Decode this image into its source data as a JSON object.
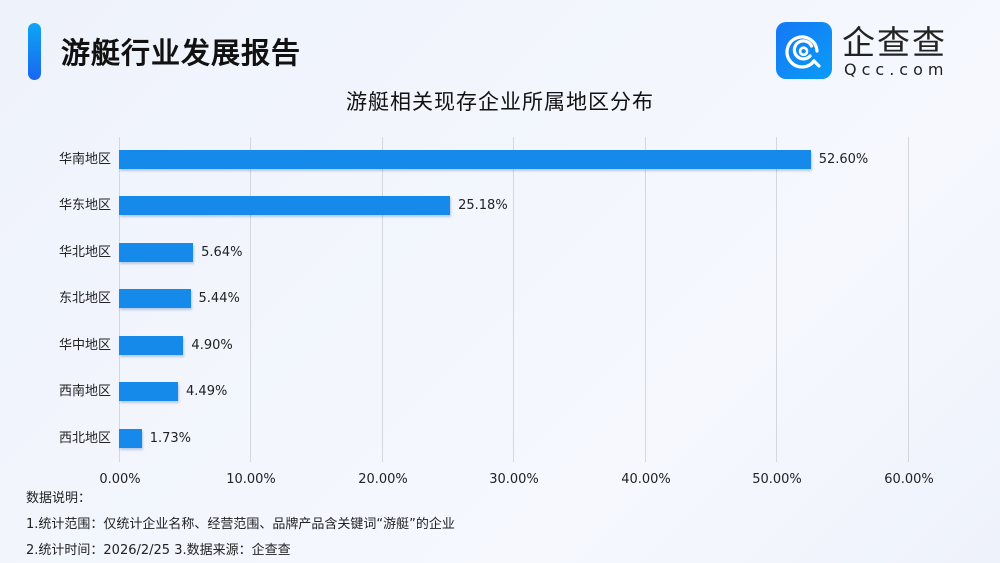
{
  "header": {
    "report_title": "游艇行业发展报告",
    "logo": {
      "cn": "企查查",
      "en": "Qcc.com",
      "icon": "qcc-logo-icon"
    }
  },
  "colors": {
    "bar": "#168aea",
    "accent_top": "#0ea5f5",
    "accent_bottom": "#1a66f0"
  },
  "chart_data": {
    "type": "bar",
    "orientation": "horizontal",
    "title": "游艇相关现存企业所属地区分布",
    "categories": [
      "华南地区",
      "华东地区",
      "华北地区",
      "东北地区",
      "华中地区",
      "西南地区",
      "西北地区"
    ],
    "values": [
      52.6,
      25.18,
      5.64,
      5.44,
      4.9,
      4.49,
      1.73
    ],
    "value_labels": [
      "52.60%",
      "25.18%",
      "5.64%",
      "5.44%",
      "4.90%",
      "4.49%",
      "1.73%"
    ],
    "xlabel": "",
    "ylabel": "",
    "xlim": [
      0,
      60
    ],
    "x_ticks": [
      "0.00%",
      "10.00%",
      "20.00%",
      "30.00%",
      "40.00%",
      "50.00%",
      "60.00%"
    ],
    "grid": "vertical",
    "legend": "none"
  },
  "notes": {
    "heading": "数据说明：",
    "line1": "1.统计范围：仅统计企业名称、经营范围、品牌产品含关键词“游艇”的企业",
    "line2": "2.统计时间：2026/2/25  3.数据来源：企查查"
  }
}
